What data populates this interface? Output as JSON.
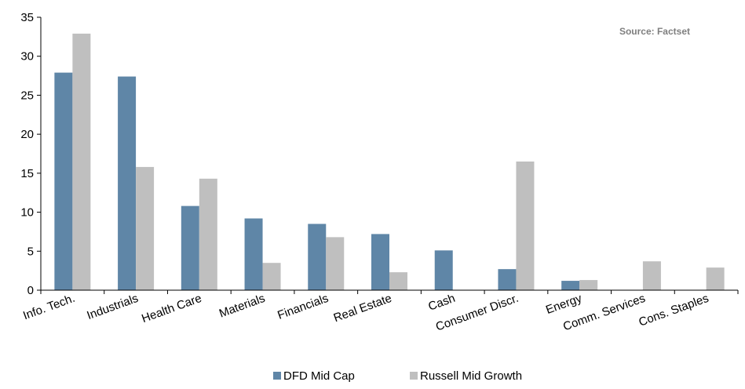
{
  "chart_data": {
    "type": "bar",
    "categories": [
      "Info. Tech.",
      "Industrials",
      "Health Care",
      "Materials",
      "Financials",
      "Real Estate",
      "Cash",
      "Consumer Discr.",
      "Energy",
      "Comm. Services",
      "Cons. Staples"
    ],
    "series": [
      {
        "name": "DFD Mid Cap",
        "color": "#5f86a7",
        "values": [
          27.9,
          27.4,
          10.8,
          9.2,
          8.5,
          7.2,
          5.1,
          2.7,
          1.2,
          0,
          0
        ]
      },
      {
        "name": "Russell Mid Growth",
        "color": "#bfbfbf",
        "values": [
          32.9,
          15.8,
          14.3,
          3.5,
          6.8,
          2.3,
          0,
          16.5,
          1.3,
          3.7,
          2.9
        ]
      }
    ],
    "ylim": [
      0,
      35
    ],
    "yticks": [
      "0",
      "5",
      "10",
      "15",
      "20",
      "25",
      "30",
      "35"
    ],
    "source_note": "Source: Factset",
    "legend_position": "bottom",
    "grid": false
  }
}
